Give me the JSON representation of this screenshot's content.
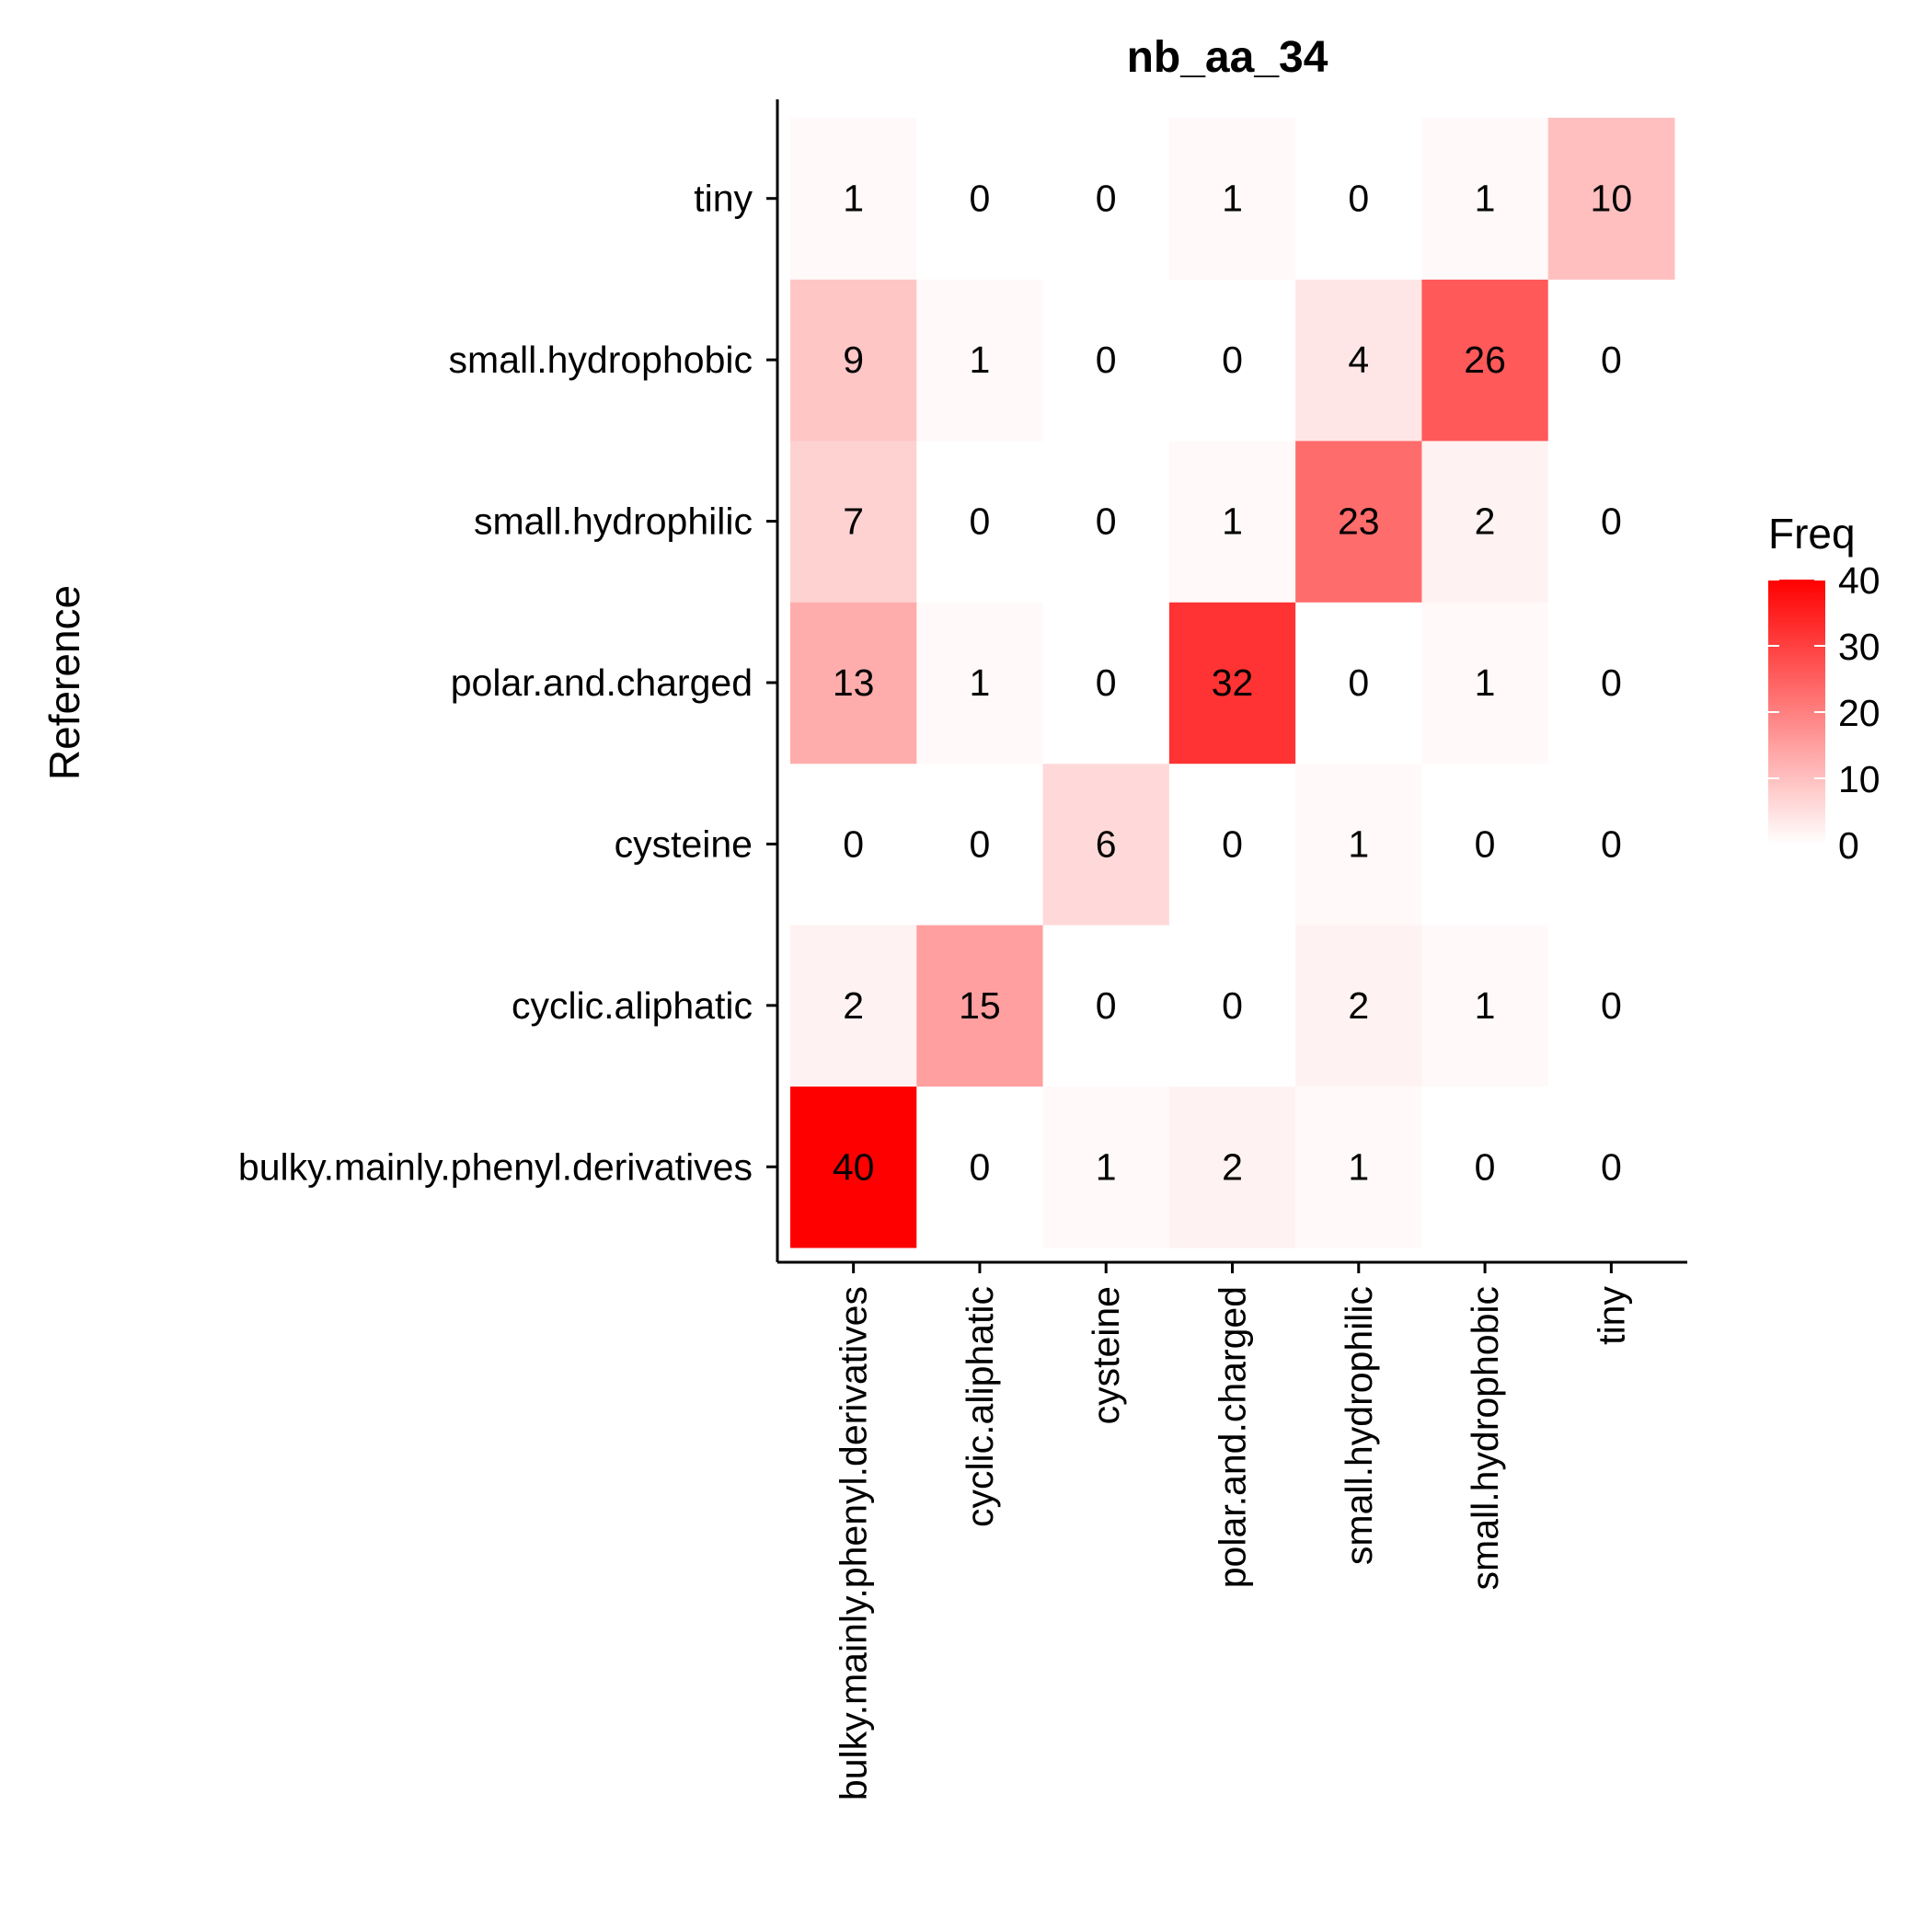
{
  "chart_data": {
    "type": "heatmap",
    "title": "nb_aa_34",
    "xlabel": "",
    "ylabel": "Reference",
    "x_categories": [
      "bulky.mainly.phenyl.derivatives",
      "cyclic.aliphatic",
      "cysteine",
      "polar.and.charged",
      "small.hydrophilic",
      "small.hydrophobic",
      "tiny"
    ],
    "y_categories": [
      "bulky.mainly.phenyl.derivatives",
      "cyclic.aliphatic",
      "cysteine",
      "polar.and.charged",
      "small.hydrophilic",
      "small.hydrophobic",
      "tiny"
    ],
    "values": [
      [
        40,
        0,
        1,
        2,
        1,
        0,
        0
      ],
      [
        2,
        15,
        0,
        0,
        2,
        1,
        0
      ],
      [
        0,
        0,
        6,
        0,
        1,
        0,
        0
      ],
      [
        13,
        1,
        0,
        32,
        0,
        1,
        0
      ],
      [
        7,
        0,
        0,
        1,
        23,
        2,
        0
      ],
      [
        9,
        1,
        0,
        0,
        4,
        26,
        0
      ],
      [
        1,
        0,
        0,
        1,
        0,
        1,
        10
      ]
    ],
    "legend": {
      "title": "Freq",
      "ticks": [
        0,
        10,
        20,
        30,
        40
      ],
      "placement": "right"
    },
    "color_scale": {
      "low": "#ffffff",
      "high": "#ff0000"
    },
    "zlim": [
      0,
      40
    ],
    "grid": false
  }
}
